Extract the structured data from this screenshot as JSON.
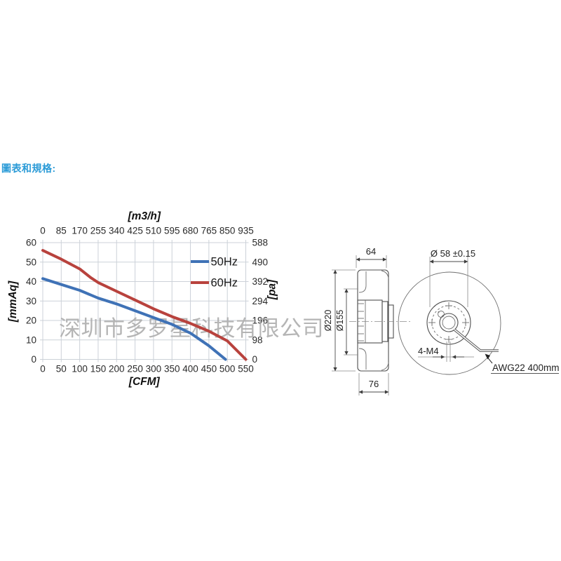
{
  "page": {
    "title": "圖表和規格:",
    "watermark": "深圳市多罗星科技有限公司"
  },
  "chart_data": {
    "type": "line",
    "grid": true,
    "legend_position": "top-right",
    "x_bottom": {
      "label": "[CFM]",
      "range": [
        0,
        550
      ],
      "ticks": [
        0,
        50,
        100,
        150,
        200,
        250,
        300,
        350,
        400,
        450,
        500,
        550
      ]
    },
    "x_top": {
      "label": "[m3/h]",
      "ticks": [
        0,
        85,
        170,
        255,
        340,
        425,
        510,
        595,
        680,
        765,
        850,
        935
      ]
    },
    "y_left": {
      "label": "[mmAq]",
      "range": [
        0,
        60
      ],
      "ticks": [
        60,
        50,
        40,
        30,
        20,
        10,
        0
      ]
    },
    "y_right": {
      "label": "[pa]",
      "ticks": [
        588,
        490,
        392,
        294,
        196,
        98,
        0
      ]
    },
    "series": [
      {
        "name": "50Hz",
        "color": "#3f72b6",
        "points": [
          [
            0,
            41.5
          ],
          [
            50,
            38.5
          ],
          [
            100,
            35.5
          ],
          [
            150,
            31.5
          ],
          [
            200,
            28.5
          ],
          [
            250,
            25
          ],
          [
            300,
            21.5
          ],
          [
            350,
            18
          ],
          [
            400,
            13.5
          ],
          [
            450,
            7
          ],
          [
            495,
            0
          ]
        ]
      },
      {
        "name": "60Hz",
        "color": "#b8423d",
        "points": [
          [
            0,
            56
          ],
          [
            50,
            51.5
          ],
          [
            100,
            46.5
          ],
          [
            130,
            42
          ],
          [
            150,
            39.5
          ],
          [
            200,
            35
          ],
          [
            250,
            30.5
          ],
          [
            300,
            26
          ],
          [
            350,
            22
          ],
          [
            400,
            18.5
          ],
          [
            450,
            14.5
          ],
          [
            500,
            9.5
          ],
          [
            550,
            0
          ]
        ]
      }
    ]
  },
  "drawing": {
    "side_view": {
      "dim_top": "64",
      "dim_bottom": "76",
      "dim_outer": "Ø220",
      "dim_inner": "Ø155"
    },
    "front_view": {
      "dim_shaft": "Ø 58 ±0.15",
      "dim_holes": "4-M4",
      "wire_label": "AWG22 400mm"
    }
  }
}
